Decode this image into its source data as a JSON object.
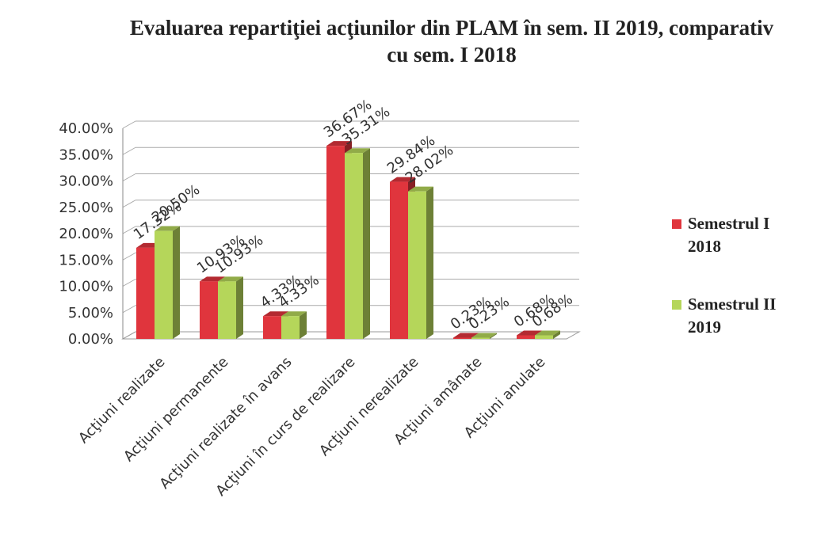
{
  "chart_data": {
    "type": "bar3d",
    "title": "Evaluarea repartiţiei acţiunilor din PLAM în sem. II 2019, comparativ cu sem. I 2018",
    "categories": [
      "Acţiuni realizate",
      "Acţiuni permanente",
      "Acţiuni realizate în avans",
      "Acţiuni în curs de realizare",
      "Acţiuni nerealizate",
      "Acţiuni amânate",
      "Acţiuni anulate"
    ],
    "series": [
      {
        "name": "Semestrul I 2018",
        "color": "#e0353d",
        "values": [
          17.32,
          10.93,
          4.33,
          36.67,
          29.84,
          0.23,
          0.68
        ],
        "value_labels": [
          "17.32%",
          "10.93%",
          "4.33%",
          "36.67%",
          "29.84%",
          "0.23%",
          "0.68%"
        ]
      },
      {
        "name": "Semestrul II 2019",
        "color": "#b5d65a",
        "values": [
          20.5,
          10.93,
          4.33,
          35.31,
          28.02,
          0.23,
          0.68
        ],
        "value_labels": [
          "20.50%",
          "10.93%",
          "4.33%",
          "35.31%",
          "28.02%",
          "0.23%",
          "0.68%"
        ]
      }
    ],
    "ylim": [
      0,
      40
    ],
    "yticks": [
      {
        "value": 0,
        "label": "0.00%"
      },
      {
        "value": 5,
        "label": "5.00%"
      },
      {
        "value": 10,
        "label": "10.00%"
      },
      {
        "value": 15,
        "label": "15.00%"
      },
      {
        "value": 20,
        "label": "20.00%"
      },
      {
        "value": 25,
        "label": "25.00%"
      },
      {
        "value": 30,
        "label": "30.00%"
      },
      {
        "value": 35,
        "label": "35.00%"
      },
      {
        "value": 40,
        "label": "40.00%"
      }
    ],
    "grid": true,
    "legend": "right"
  }
}
